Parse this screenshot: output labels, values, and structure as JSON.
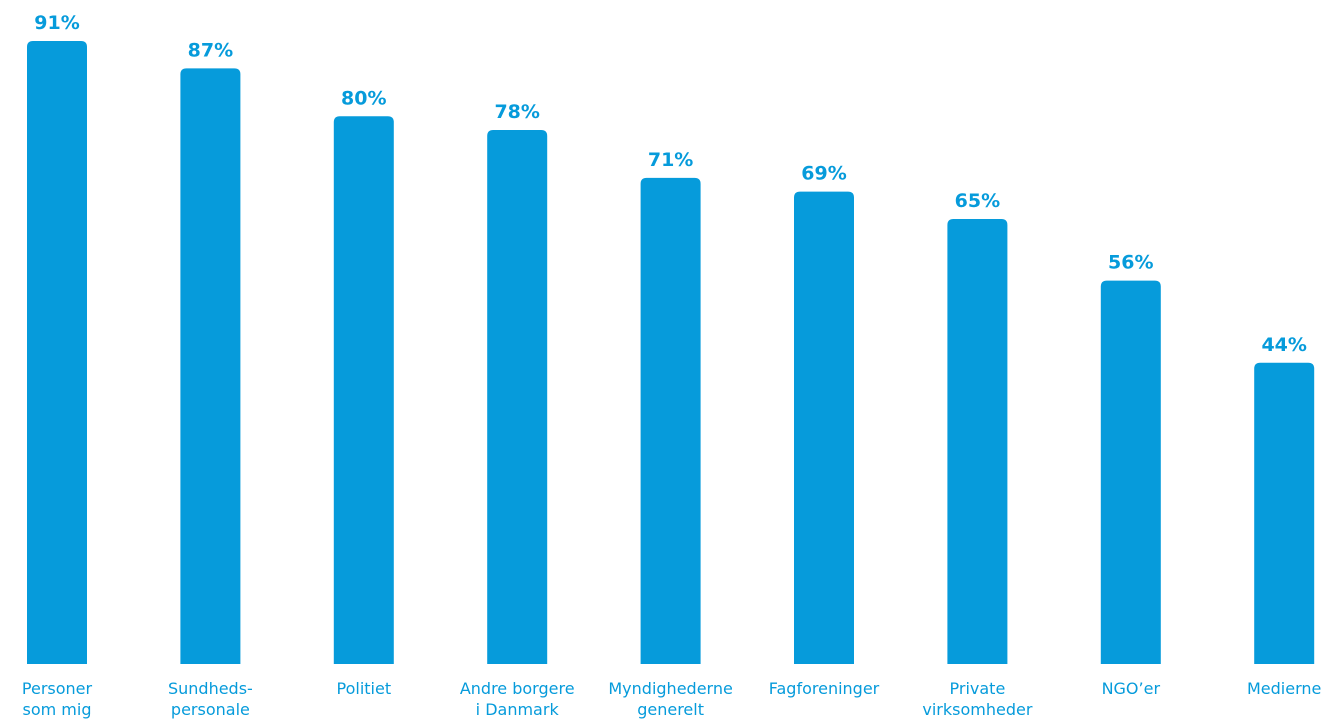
{
  "chart_data": {
    "type": "bar",
    "categories": [
      [
        "Personer",
        "som mig"
      ],
      [
        "Sundheds-",
        "personale"
      ],
      [
        "Politiet"
      ],
      [
        "Andre borgere",
        "i Danmark"
      ],
      [
        "Myndighederne",
        "generelt"
      ],
      [
        "Fagforeninger"
      ],
      [
        "Private",
        "virksomheder"
      ],
      [
        "NGO’er"
      ],
      [
        "Medierne"
      ]
    ],
    "values": [
      91,
      87,
      80,
      78,
      71,
      69,
      65,
      56,
      44
    ],
    "value_labels": [
      "91%",
      "87%",
      "80%",
      "78%",
      "71%",
      "69%",
      "65%",
      "56%",
      "44%"
    ],
    "title": "",
    "xlabel": "",
    "ylabel": "",
    "ylim": [
      0,
      91
    ],
    "grid": false,
    "legend": "none",
    "bar_color": "#069bdb",
    "label_color": "#069bdb"
  }
}
